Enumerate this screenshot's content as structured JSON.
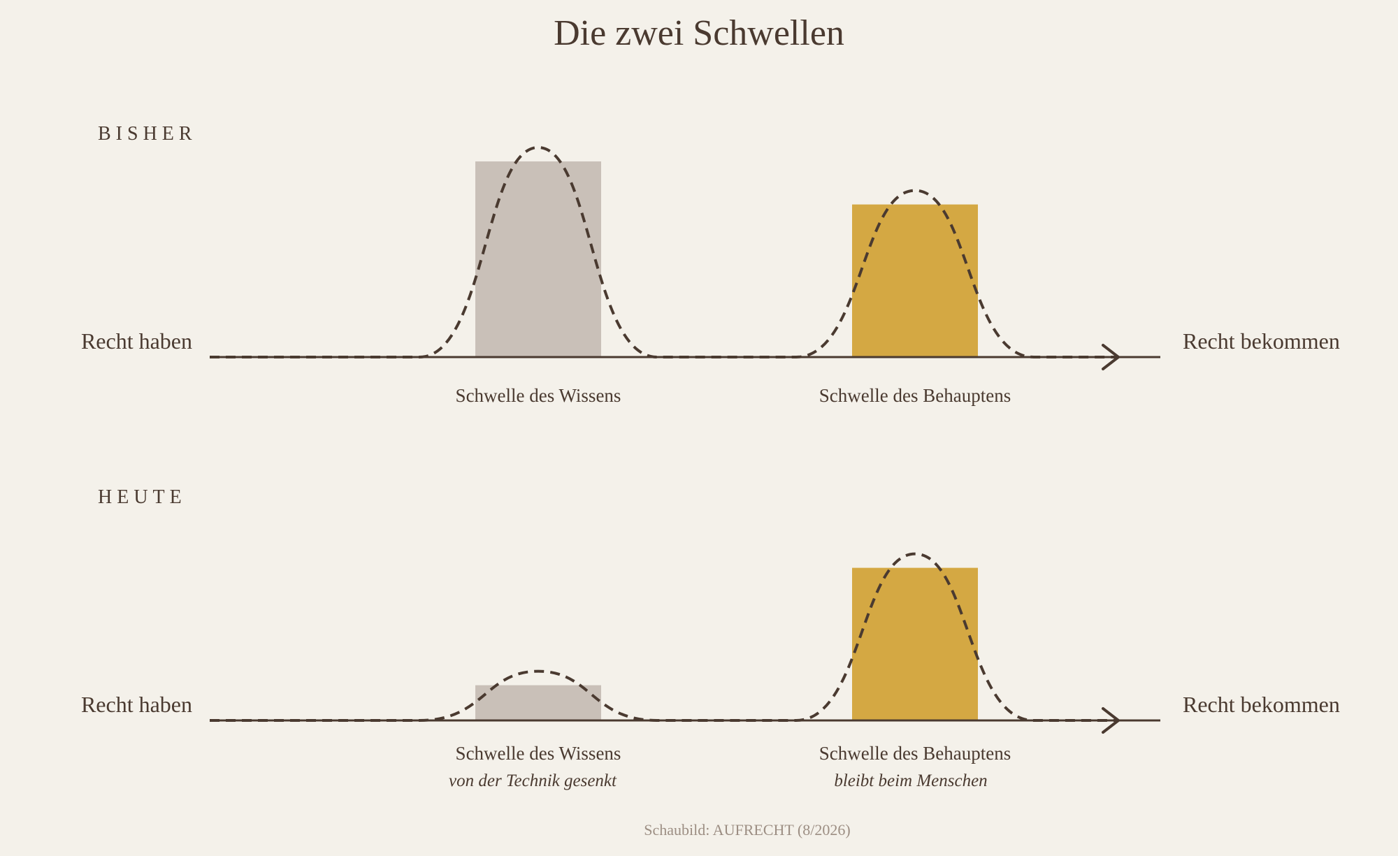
{
  "title": "Die zwei Schwellen",
  "colors": {
    "background": "#f4f1ea",
    "ink": "#4a3a30",
    "knowledge_bar": "#c9c0b8",
    "assertion_bar": "#d4a843"
  },
  "panels": [
    {
      "heading": "BISHER",
      "start_label": "Recht haben",
      "end_label": "Recht bekommen",
      "thresholds": [
        {
          "label": "Schwelle des Wissens",
          "note": "",
          "level": 1.0,
          "color_key": "knowledge_bar"
        },
        {
          "label": "Schwelle des Behauptens",
          "note": "",
          "level": 0.78,
          "color_key": "assertion_bar"
        }
      ]
    },
    {
      "heading": "HEUTE",
      "start_label": "Recht haben",
      "end_label": "Recht bekommen",
      "thresholds": [
        {
          "label": "Schwelle des Wissens",
          "note": "von der Technik gesenkt",
          "level": 0.18,
          "color_key": "knowledge_bar"
        },
        {
          "label": "Schwelle des Behauptens",
          "note": "bleibt beim Menschen",
          "level": 0.78,
          "color_key": "assertion_bar"
        }
      ]
    }
  ],
  "source": "Schaubild: AUFRECHT (8/2026)"
}
